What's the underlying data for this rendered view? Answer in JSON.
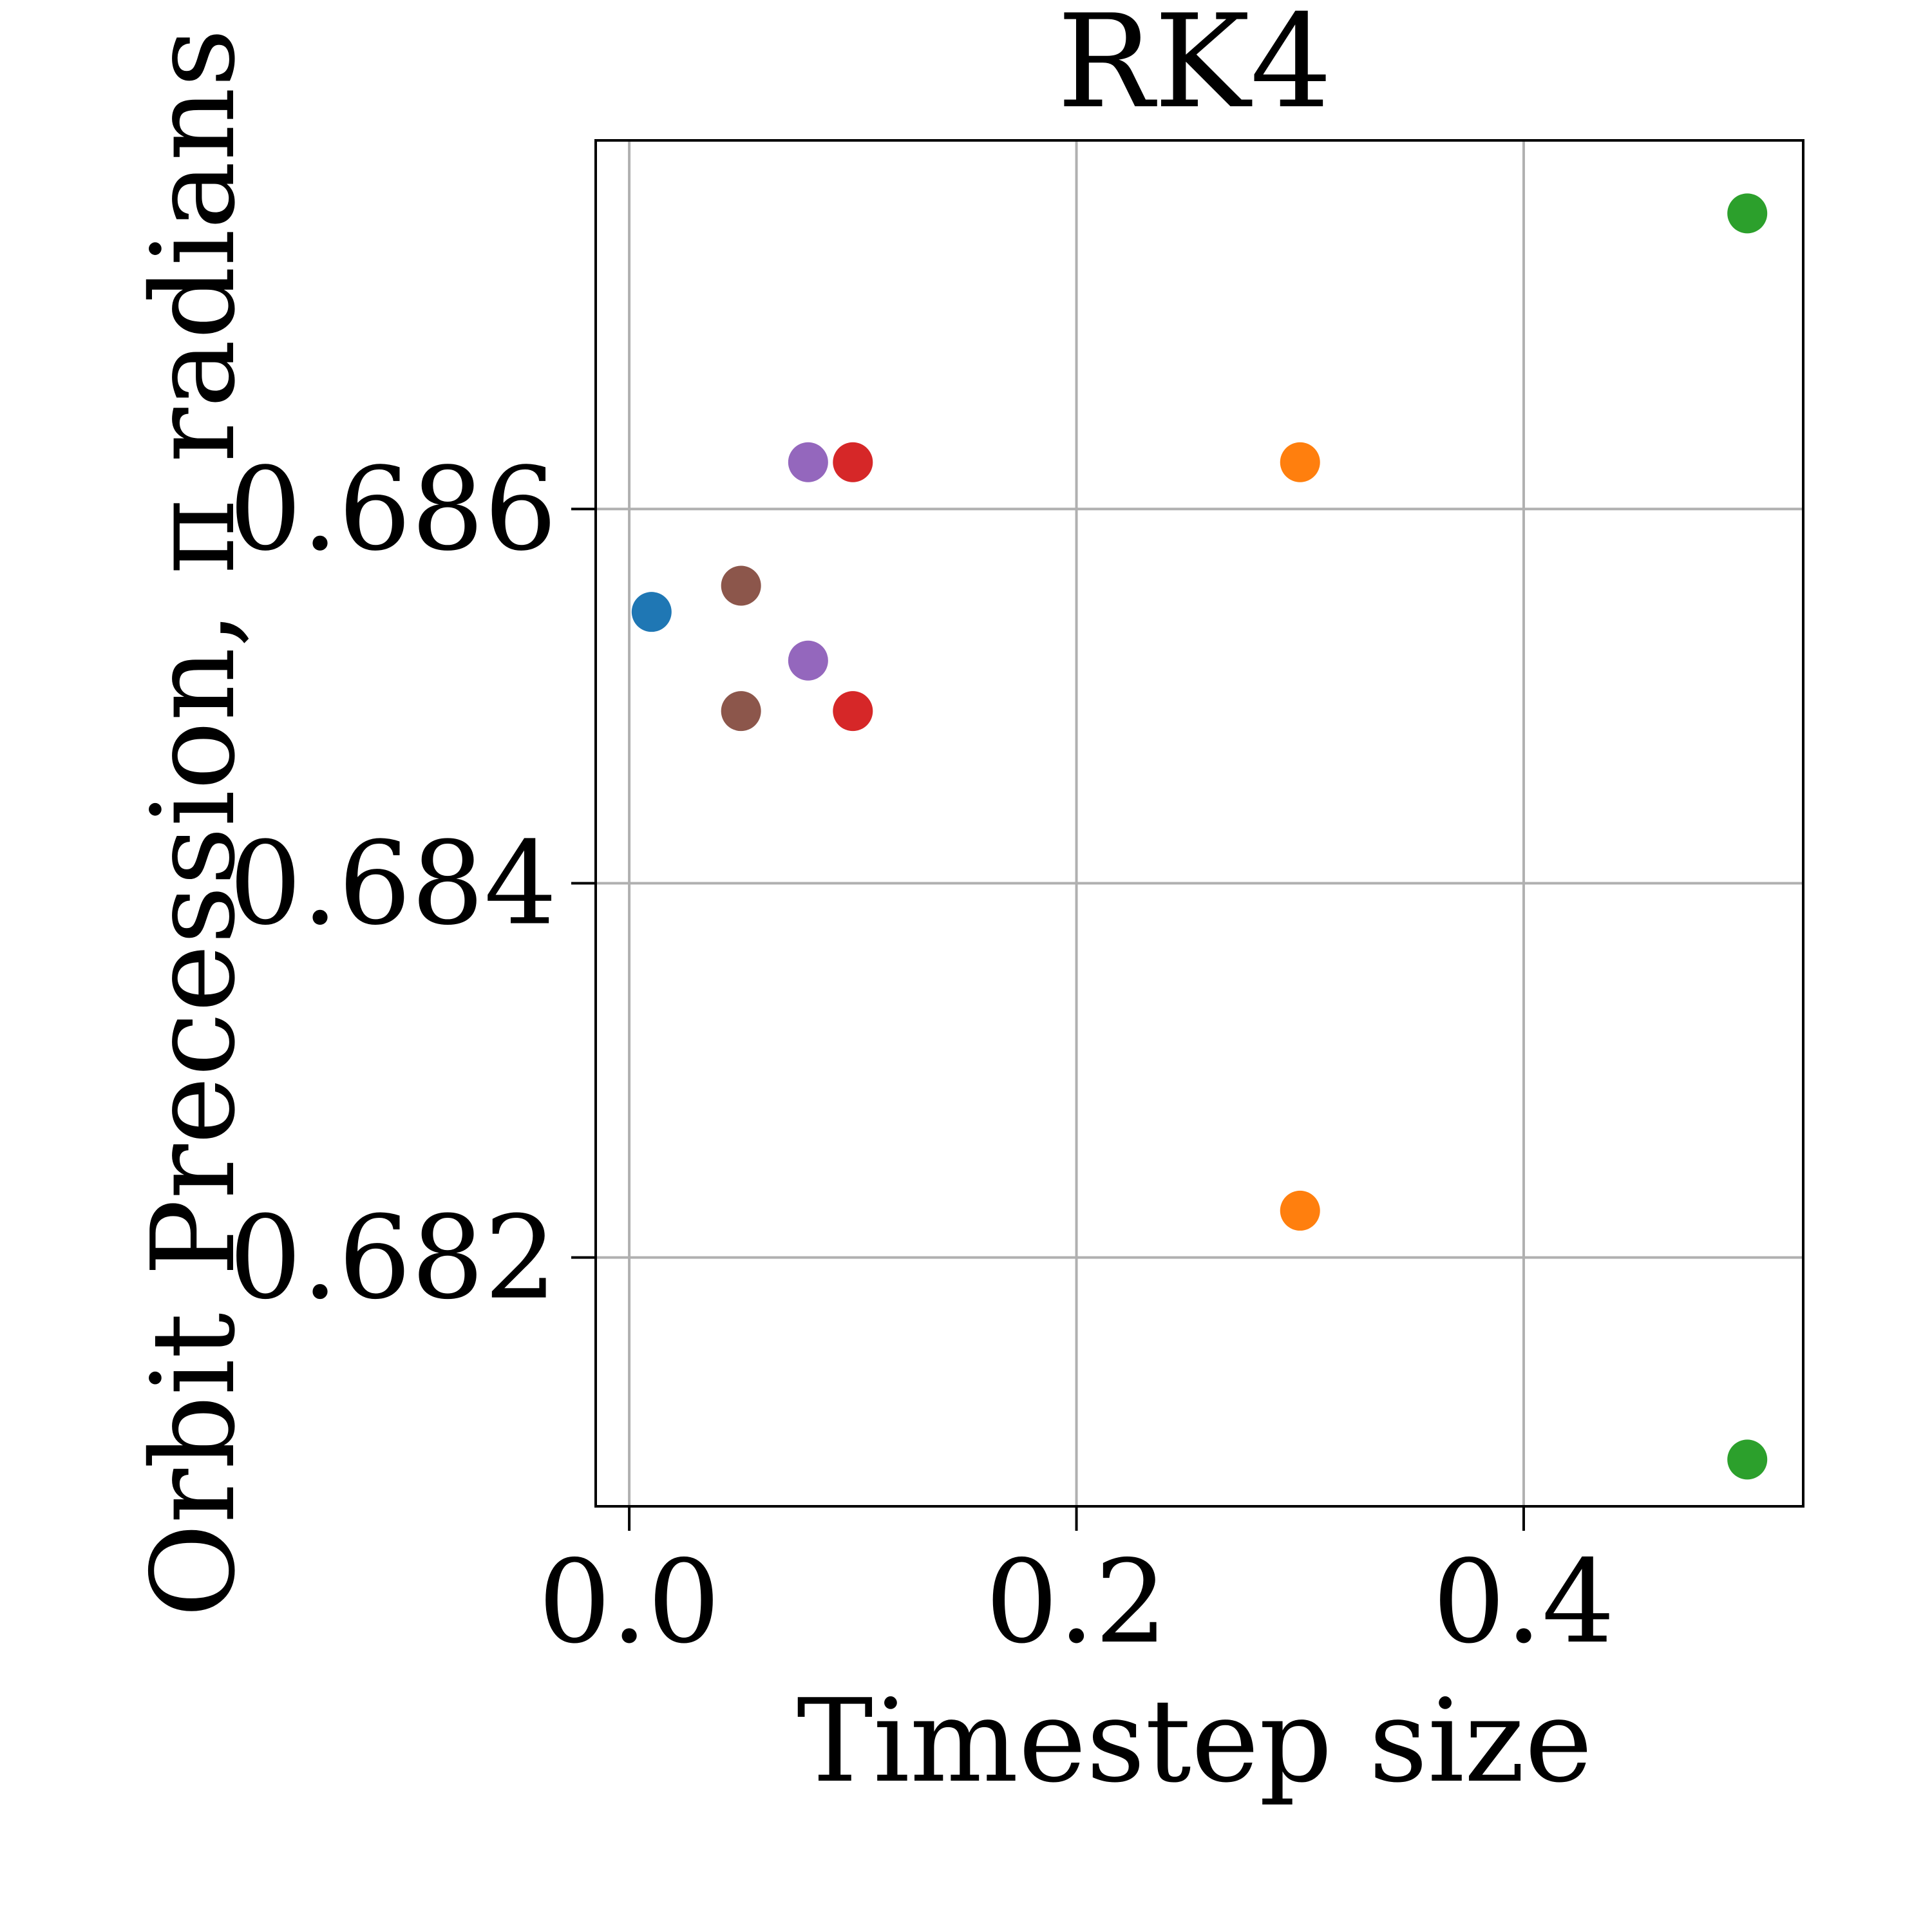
{
  "chart_data": {
    "type": "scatter",
    "title": "RK4",
    "xlabel": "Timestep size",
    "ylabel": "Orbit Precession, π radians",
    "xlim": [
      -0.015,
      0.525
    ],
    "ylim": [
      0.68067,
      0.68797
    ],
    "x_ticks": [
      {
        "value": 0.0,
        "label": "0.0"
      },
      {
        "value": 0.2,
        "label": "0.2"
      },
      {
        "value": 0.4,
        "label": "0.4"
      }
    ],
    "y_ticks": [
      {
        "value": 0.682,
        "label": "0.682"
      },
      {
        "value": 0.684,
        "label": "0.684"
      },
      {
        "value": 0.686,
        "label": "0.686"
      }
    ],
    "grid": true,
    "points": [
      {
        "x": 0.01,
        "y": 0.68545,
        "color": "#1f77b4"
      },
      {
        "x": 0.3,
        "y": 0.68225,
        "color": "#ff7f0e"
      },
      {
        "x": 0.3,
        "y": 0.68625,
        "color": "#ff7f0e"
      },
      {
        "x": 0.5,
        "y": 0.68092,
        "color": "#2ca02c"
      },
      {
        "x": 0.5,
        "y": 0.68758,
        "color": "#2ca02c"
      },
      {
        "x": 0.1,
        "y": 0.68492,
        "color": "#d62728"
      },
      {
        "x": 0.1,
        "y": 0.68625,
        "color": "#d62728"
      },
      {
        "x": 0.08,
        "y": 0.68519,
        "color": "#9467bd"
      },
      {
        "x": 0.08,
        "y": 0.68625,
        "color": "#9467bd"
      },
      {
        "x": 0.05,
        "y": 0.68492,
        "color": "#8c564b"
      },
      {
        "x": 0.05,
        "y": 0.68559,
        "color": "#8c564b"
      }
    ]
  }
}
